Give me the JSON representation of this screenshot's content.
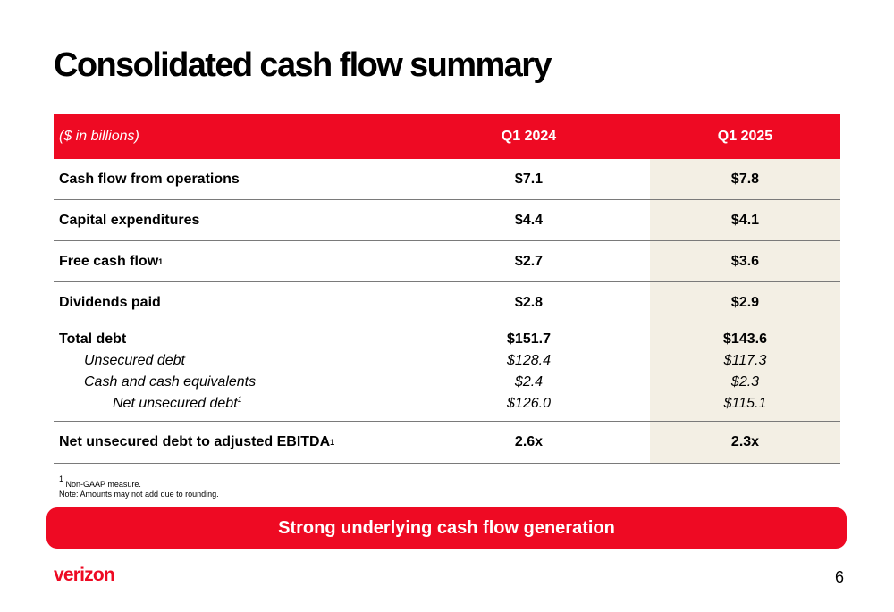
{
  "title": "Consolidated cash flow summary",
  "table": {
    "header": {
      "label": "($ in billions)",
      "col_a": "Q1 2024",
      "col_b": "Q1 2025"
    },
    "rows": [
      {
        "label": "Cash flow from operations",
        "a": "$7.1",
        "b": "$7.8"
      },
      {
        "label": "Capital expenditures",
        "a": "$4.4",
        "b": "$4.1"
      },
      {
        "label": "Free cash flow",
        "sup": "1",
        "a": "$2.7",
        "b": "$3.6"
      },
      {
        "label": "Dividends paid",
        "a": "$2.8",
        "b": "$2.9"
      }
    ],
    "debt": {
      "total": {
        "label": "Total debt",
        "a": "$151.7",
        "b": "$143.6"
      },
      "unsecured": {
        "label": "Unsecured debt",
        "a": "$128.4",
        "b": "$117.3"
      },
      "cash": {
        "label": "Cash and cash equivalents",
        "a": "$2.4",
        "b": "$2.3"
      },
      "net": {
        "label": "Net unsecured debt",
        "sup": "1",
        "a": "$126.0",
        "b": "$115.1"
      }
    },
    "ratio": {
      "label": "Net unsecured debt to adjusted EBITDA",
      "sup": "1",
      "a": "2.6x",
      "b": "2.3x"
    }
  },
  "footnotes": {
    "note1_sup": "1",
    "note1": " Non-GAAP measure.",
    "note2": "Note: Amounts may not add due to rounding."
  },
  "banner": "Strong underlying cash flow generation",
  "logo": "verizon",
  "page_number": "6",
  "colors": {
    "accent": "#ee0a23",
    "highlight_column": "#f3efe4"
  }
}
